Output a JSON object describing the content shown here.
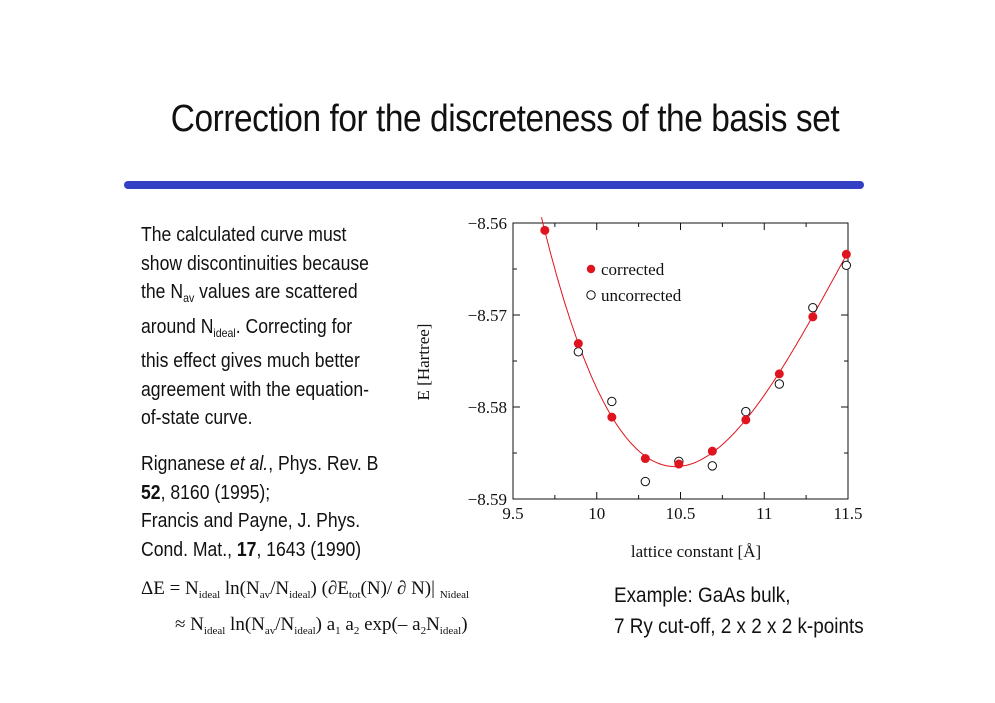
{
  "title": "Correction for the discreteness of the basis set",
  "description": {
    "part1": "The calculated curve must show discontinuities because the N",
    "nav_sub": "av",
    "part2": " values are  scattered around N",
    "nideal_sub": "ideal",
    "part3": ". Correcting for this effect gives much better agreement with the equation-of-state curve."
  },
  "references": {
    "r1_authors": "Rignanese ",
    "r1_etal": "et al.",
    "r1_journal": ", Phys. Rev. B ",
    "r1_vol": "52",
    "r1_rest": ", 8160 (1995);",
    "r2_text": "Francis and Payne, J. Phys. Cond. Mat., ",
    "r2_vol": "17",
    "r2_rest": ", 1643 (1990)"
  },
  "formula": {
    "line1": {
      "a": "ΔE = N",
      "s1": "ideal",
      "b": " ln(N",
      "s2": "av",
      "c": "/N",
      "s3": "ideal",
      "d": ") (∂E",
      "s4": "tot",
      "e": "(N)/ ∂ N)| ",
      "s5": "Nideal"
    },
    "line2": {
      "a": "≈ N",
      "s1": "ideal",
      "b": " ln(N",
      "s2": "av",
      "c": "/N",
      "s3": "ideal",
      "d": ") a",
      "s4": "1",
      "e": "  a",
      "s5": "2",
      "f": "  exp(– a",
      "s6": "2",
      "g": "N",
      "s7": "ideal",
      "h": ")"
    }
  },
  "example": {
    "line1": "Example: GaAs bulk,",
    "line2": "7 Ry cut-off, 2 x 2 x 2 k-points"
  },
  "colors": {
    "title_bar": "#3340c4",
    "corrected": "#e0141e",
    "curve": "#e0141e"
  },
  "chart_data": {
    "type": "scatter",
    "xlabel": "lattice constant [Å]",
    "ylabel": "E [Hartree]",
    "xlim": [
      9.5,
      11.5
    ],
    "ylim": [
      -8.59,
      -8.56
    ],
    "x_ticks": [
      "9.5",
      "10",
      "10.5",
      "11",
      "11.5"
    ],
    "x_tick_values": [
      9.5,
      10,
      10.5,
      11,
      11.5
    ],
    "y_ticks": [
      "−8.56",
      "−8.57",
      "−8.58",
      "−8.59"
    ],
    "y_tick_values": [
      -8.56,
      -8.57,
      -8.58,
      -8.59
    ],
    "legend_position": "top-left",
    "series": [
      {
        "name": "corrected",
        "marker": "filled-circle",
        "x": [
          9.69,
          9.89,
          10.09,
          10.29,
          10.49,
          10.69,
          10.89,
          11.09,
          11.29,
          11.49
        ],
        "y": [
          -8.5608,
          -8.5731,
          -8.5811,
          -8.5856,
          -8.5862,
          -8.5848,
          -8.5814,
          -8.5764,
          -8.5702,
          -8.5634
        ]
      },
      {
        "name": "uncorrected",
        "marker": "open-circle",
        "x": [
          9.89,
          10.09,
          10.29,
          10.49,
          10.69,
          10.89,
          11.09,
          11.29,
          11.49
        ],
        "y": [
          -8.574,
          -8.5794,
          -8.5881,
          -8.5859,
          -8.5864,
          -8.5805,
          -8.5775,
          -8.5692,
          -8.5646
        ]
      }
    ],
    "fit_curve": "equation-of-state"
  }
}
